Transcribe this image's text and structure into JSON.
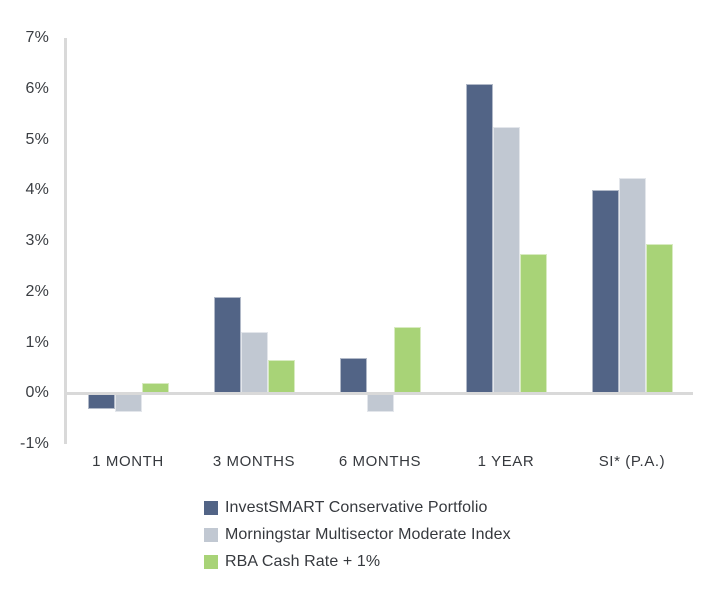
{
  "chart_data": {
    "type": "bar",
    "title": "",
    "xlabel": "",
    "ylabel": "",
    "categories": [
      "1 MONTH",
      "3 MONTHS",
      "6 MONTHS",
      "1 YEAR",
      "SI* (P.A.)"
    ],
    "series": [
      {
        "name": "InvestSMART Conservative Portfolio",
        "color": "#526486",
        "values": [
          -0.3,
          1.9,
          0.7,
          6.1,
          4.0
        ]
      },
      {
        "name": "Morningstar Multisector Moderate Index",
        "color": "#c1c8d2",
        "values": [
          -0.35,
          1.2,
          -0.35,
          5.25,
          4.25
        ]
      },
      {
        "name": "RBA Cash Rate + 1%",
        "color": "#a8d377",
        "values": [
          0.2,
          0.65,
          1.3,
          2.75,
          2.95
        ]
      }
    ],
    "ylim": [
      -1,
      7
    ],
    "ytick_labels": [
      "7%",
      "6%",
      "5%",
      "4%",
      "3%",
      "2%",
      "1%",
      "0%",
      "-1%"
    ],
    "ytick_values": [
      7,
      6,
      5,
      4,
      3,
      2,
      1,
      0,
      -1
    ],
    "grid": "zero-baseline-only",
    "legend_position": "bottom",
    "axis_color": "#d9d9d9",
    "text_color": "#36393e"
  }
}
